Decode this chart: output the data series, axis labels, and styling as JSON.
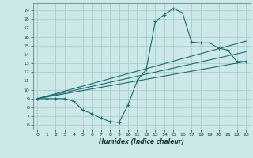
{
  "title": "",
  "xlabel": "Humidex (Indice chaleur)",
  "background_color": "#cce8e8",
  "grid_color": "#aacccc",
  "line_color": "#1a6b6b",
  "xlim": [
    -0.5,
    23.5
  ],
  "ylim": [
    5.5,
    19.8
  ],
  "xticks": [
    0,
    1,
    2,
    3,
    4,
    5,
    6,
    7,
    8,
    9,
    10,
    11,
    12,
    13,
    14,
    15,
    16,
    17,
    18,
    19,
    20,
    21,
    22,
    23
  ],
  "yticks": [
    6,
    7,
    8,
    9,
    10,
    11,
    12,
    13,
    14,
    15,
    16,
    17,
    18,
    19
  ],
  "line1_x": [
    0,
    1,
    2,
    3,
    4,
    5,
    6,
    7,
    8,
    9,
    10,
    11,
    12,
    13,
    14,
    15,
    16,
    17,
    18,
    19,
    20,
    21,
    22,
    23
  ],
  "line1_y": [
    9,
    9,
    9,
    9,
    8.7,
    7.7,
    7.3,
    6.8,
    6.4,
    6.3,
    8.3,
    11.0,
    12.3,
    17.7,
    18.5,
    19.2,
    18.7,
    15.4,
    15.3,
    15.3,
    14.7,
    14.5,
    13.2,
    13.2
  ],
  "line2_x": [
    0,
    23
  ],
  "line2_y": [
    9.0,
    13.2
  ],
  "line3_x": [
    0,
    23
  ],
  "line3_y": [
    9.0,
    15.5
  ],
  "line4_x": [
    0,
    23
  ],
  "line4_y": [
    9.0,
    14.3
  ]
}
